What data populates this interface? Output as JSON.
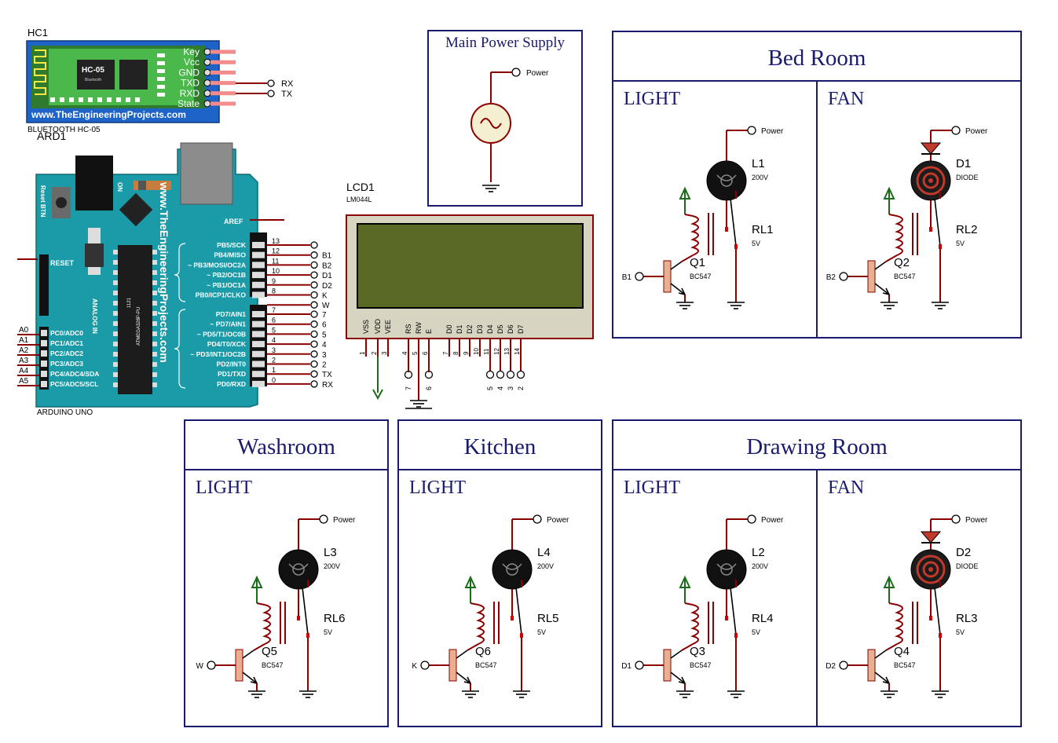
{
  "bluetooth": {
    "ref": "HC1",
    "chip": "HC-05",
    "chip_sub": "Bluetooth",
    "pins": [
      "Key",
      "Vcc",
      "GND",
      "TXD",
      "RXD",
      "State"
    ],
    "url": "www.TheEngineeringProjects.com",
    "caption": "BLUETOOTH HC-05",
    "net_rx": "RX",
    "net_tx": "TX"
  },
  "arduino": {
    "ref": "ARD1",
    "caption": "ARDUINO UNO",
    "reset_btn": "Reset BTN",
    "on_label": "ON",
    "reset": "RESET",
    "aref": "AREF",
    "analog": "ANALOG IN",
    "url": "www.TheEngineeringProjects.com",
    "chip": "ATMEGA328P-PU",
    "chip_num": "1121",
    "digital_top": [
      {
        "pin": "PB5/SCK",
        "num": "13",
        "net": ""
      },
      {
        "pin": "PB4/MISO",
        "num": "12",
        "net": "B1"
      },
      {
        "pin": "~ PB3/MOSI/OC2A",
        "num": "11",
        "net": "B2"
      },
      {
        "pin": "~ PB2/OC1B",
        "num": "10",
        "net": "D1"
      },
      {
        "pin": "~ PB1/OC1A",
        "num": "9",
        "net": "D2"
      },
      {
        "pin": "PB0/ICP1/CLKO",
        "num": "8",
        "net": "K"
      },
      {
        "pin": "",
        "num": "",
        "net": "W"
      }
    ],
    "digital_bottom": [
      {
        "pin": "PD7/AIN1",
        "num": "7",
        "net": "7"
      },
      {
        "pin": "~ PD7/AIN1",
        "num": "6",
        "net": "6"
      },
      {
        "pin": "~ PD5/T1/OC0B",
        "num": "5",
        "net": "5"
      },
      {
        "pin": "PD4/T0/XCK",
        "num": "4",
        "net": "4"
      },
      {
        "pin": "~ PD3/INT1/OC2B",
        "num": "3",
        "net": "3"
      },
      {
        "pin": "PD2/INT0",
        "num": "2",
        "net": "2"
      },
      {
        "pin": "PD1/TXD",
        "num": "1",
        "net": "TX"
      },
      {
        "pin": "PD0/RXD",
        "num": "0",
        "net": "RX"
      }
    ],
    "analog_pins": [
      {
        "name": "PC0/ADC0",
        "net": "A0"
      },
      {
        "name": "PC1/ADC1",
        "net": "A1"
      },
      {
        "name": "PC2/ADC2",
        "net": "A2"
      },
      {
        "name": "PC3/ADC3",
        "net": "A3"
      },
      {
        "name": "PC4/ADC4/SDA",
        "net": "A4"
      },
      {
        "name": "PC5/ADC5/SCL",
        "net": "A5"
      }
    ]
  },
  "lcd": {
    "ref": "LCD1",
    "model": "LM044L",
    "pins": [
      {
        "name": "VSS",
        "num": "1"
      },
      {
        "name": "VDD",
        "num": "2"
      },
      {
        "name": "VEE",
        "num": "3"
      },
      {
        "name": "RS",
        "num": "4"
      },
      {
        "name": "RW",
        "num": "5"
      },
      {
        "name": "E",
        "num": "6"
      },
      {
        "name": "D0",
        "num": "7"
      },
      {
        "name": "D1",
        "num": "8"
      },
      {
        "name": "D2",
        "num": "9"
      },
      {
        "name": "D3",
        "num": "10"
      },
      {
        "name": "D4",
        "num": "11"
      },
      {
        "name": "D5",
        "num": "12"
      },
      {
        "name": "D6",
        "num": "13"
      },
      {
        "name": "D7",
        "num": "14"
      }
    ],
    "nets": [
      "7",
      "6",
      "5",
      "4",
      "3",
      "2"
    ]
  },
  "power": {
    "title": "Main Power Supply",
    "net": "Power"
  },
  "sections": [
    {
      "title": "Bed Room",
      "cells": [
        {
          "kind": "light",
          "label": "LIGHT",
          "load": "L1",
          "load_val": "200V",
          "relay": "RL1",
          "relay_val": "5V",
          "q": "Q1",
          "q_model": "BC547",
          "input": "B1"
        },
        {
          "kind": "fan",
          "label": "FAN",
          "load": "D1",
          "load_val": "DIODE",
          "relay": "RL2",
          "relay_val": "5V",
          "q": "Q2",
          "q_model": "BC547",
          "input": "B2"
        }
      ]
    },
    {
      "title": "Washroom",
      "cells": [
        {
          "kind": "light",
          "label": "LIGHT",
          "load": "L3",
          "load_val": "200V",
          "relay": "RL6",
          "relay_val": "5V",
          "q": "Q5",
          "q_model": "BC547",
          "input": "W"
        }
      ]
    },
    {
      "title": "Kitchen",
      "cells": [
        {
          "kind": "light",
          "label": "LIGHT",
          "load": "L4",
          "load_val": "200V",
          "relay": "RL5",
          "relay_val": "5V",
          "q": "Q6",
          "q_model": "BC547",
          "input": "K"
        }
      ]
    },
    {
      "title": "Drawing Room",
      "cells": [
        {
          "kind": "light",
          "label": "LIGHT",
          "load": "L2",
          "load_val": "200V",
          "relay": "RL4",
          "relay_val": "5V",
          "q": "Q3",
          "q_model": "BC547",
          "input": "D1"
        },
        {
          "kind": "fan",
          "label": "FAN",
          "load": "D2",
          "load_val": "DIODE",
          "relay": "RL3",
          "relay_val": "5V",
          "q": "Q4",
          "q_model": "BC547",
          "input": "D2"
        }
      ]
    }
  ],
  "colors": {
    "frame": "#1a1a6e",
    "wire": "#8b0000",
    "arduino": "#1b9aa7",
    "hc05": "#1e63c8",
    "lcd_screen": "#5a6a25",
    "lcd_body": "#d8d4c2"
  }
}
